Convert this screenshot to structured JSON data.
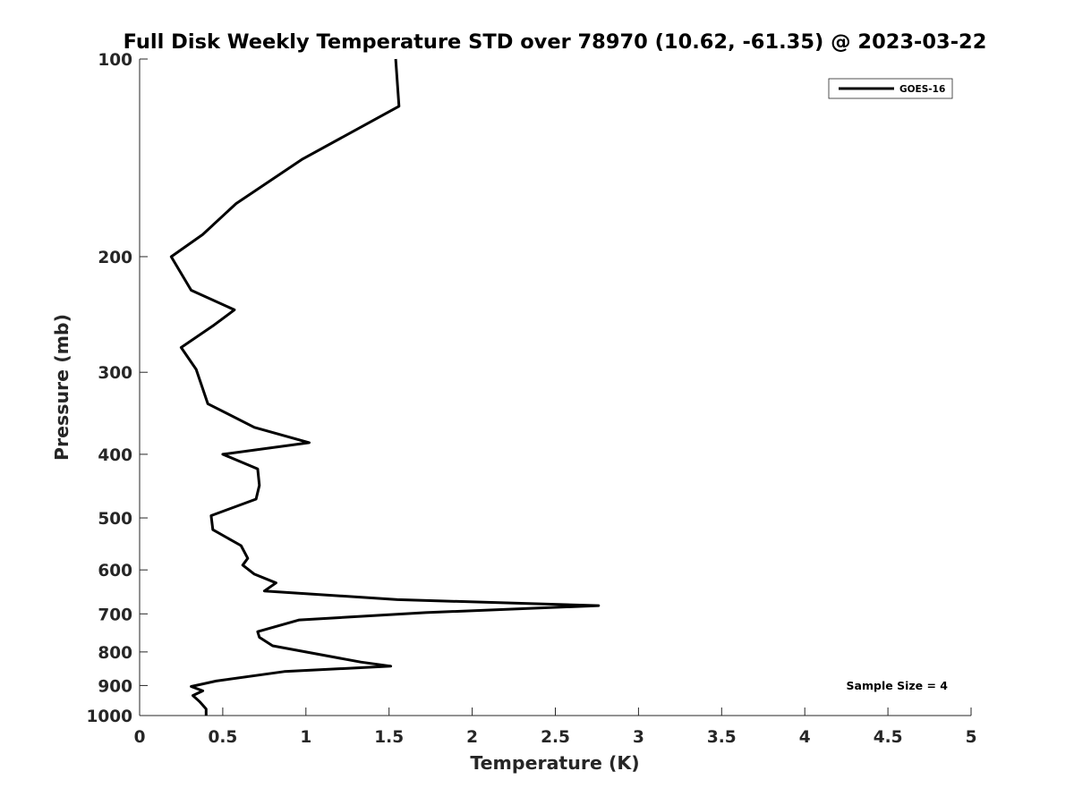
{
  "chart_data": {
    "type": "line",
    "title": "Full Disk Weekly Temperature STD over 78970 (10.62, -61.35) @ 2023-03-22",
    "xlabel": "Temperature (K)",
    "ylabel": "Pressure (mb)",
    "xlim": [
      0,
      5
    ],
    "ylim": [
      100,
      1000
    ],
    "y_scale": "log",
    "y_reversed": true,
    "x_ticks": [
      "0",
      "0.5",
      "1",
      "1.5",
      "2",
      "2.5",
      "3",
      "3.5",
      "4",
      "4.5",
      "5"
    ],
    "y_ticks": [
      "100",
      "200",
      "300",
      "400",
      "500",
      "600",
      "700",
      "800",
      "900",
      "1000"
    ],
    "grid": false,
    "legend": {
      "placement": "top-right",
      "entries": [
        "GOES-16"
      ]
    },
    "annotation": "Sample Size = 4",
    "series": [
      {
        "name": "GOES-16",
        "color": "#000000",
        "points": [
          [
            1.54,
            100
          ],
          [
            1.56,
            118
          ],
          [
            0.98,
            142
          ],
          [
            0.58,
            166
          ],
          [
            0.38,
            185
          ],
          [
            0.19,
            200
          ],
          [
            0.31,
            225
          ],
          [
            0.57,
            241
          ],
          [
            0.45,
            254
          ],
          [
            0.25,
            275
          ],
          [
            0.34,
            297
          ],
          [
            0.41,
            335
          ],
          [
            0.69,
            364
          ],
          [
            1.02,
            384
          ],
          [
            0.5,
            400
          ],
          [
            0.71,
            421
          ],
          [
            0.72,
            446
          ],
          [
            0.7,
            468
          ],
          [
            0.43,
            496
          ],
          [
            0.44,
            521
          ],
          [
            0.61,
            551
          ],
          [
            0.65,
            576
          ],
          [
            0.62,
            590
          ],
          [
            0.69,
            609
          ],
          [
            0.82,
            628
          ],
          [
            0.75,
            646
          ],
          [
            1.55,
            666
          ],
          [
            2.76,
            680
          ],
          [
            1.72,
            697
          ],
          [
            0.96,
            715
          ],
          [
            0.71,
            745
          ],
          [
            0.72,
            760
          ],
          [
            0.8,
            783
          ],
          [
            1.33,
            829
          ],
          [
            1.51,
            841
          ],
          [
            0.87,
            857
          ],
          [
            0.46,
            886
          ],
          [
            0.31,
            903
          ],
          [
            0.38,
            917
          ],
          [
            0.32,
            932
          ],
          [
            0.36,
            952
          ],
          [
            0.4,
            977
          ],
          [
            0.4,
            1000
          ]
        ]
      }
    ]
  }
}
